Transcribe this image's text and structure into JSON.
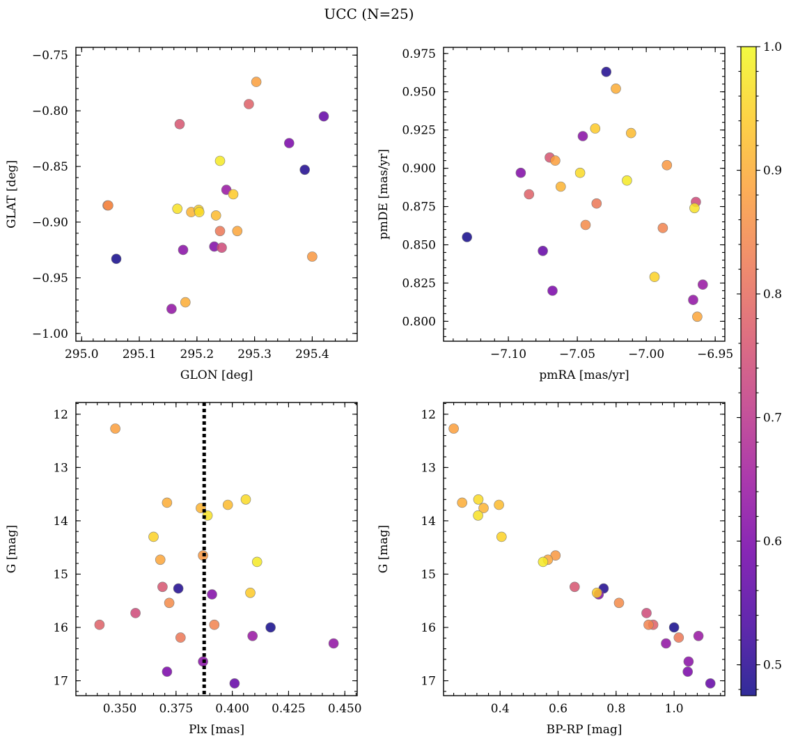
{
  "figure": {
    "title": "UCC (N=25)"
  },
  "colors": {
    "marker_edge": "#7a7a7a",
    "plx_line": "#000000",
    "colormap": [
      "#0d0887",
      "#46039f",
      "#7201a8",
      "#9c179e",
      "#bd3786",
      "#d8576b",
      "#ed7953",
      "#fb9f3a",
      "#fdca26",
      "#f0f921"
    ]
  },
  "colorbar": {
    "min": 0.475,
    "max": 1.0,
    "ticks": [
      "0.5",
      "0.6",
      "0.7",
      "0.8",
      "0.9",
      "1.0"
    ],
    "tick_values": [
      0.5,
      0.6,
      0.7,
      0.8,
      0.9,
      1.0
    ]
  },
  "members": {
    "columns": [
      "glon",
      "glat",
      "pmra",
      "pmde",
      "plx",
      "bp_rp",
      "g",
      "prob"
    ],
    "rows": [
      [
        295.06,
        -0.933,
        -7.13,
        0.855,
        0.417,
        1.0,
        16.0,
        0.48
      ],
      [
        295.387,
        -0.853,
        -7.029,
        0.963,
        0.376,
        0.757,
        15.27,
        0.49
      ],
      [
        295.42,
        -0.805,
        -7.075,
        0.846,
        0.401,
        1.125,
        17.05,
        0.57
      ],
      [
        295.36,
        -0.829,
        -7.068,
        0.82,
        0.371,
        1.047,
        16.83,
        0.6
      ],
      [
        295.23,
        -0.922,
        -7.091,
        0.897,
        0.391,
        0.74,
        15.38,
        0.61
      ],
      [
        295.176,
        -0.925,
        -7.046,
        0.921,
        0.387,
        1.05,
        16.64,
        0.62
      ],
      [
        295.156,
        -0.978,
        -6.966,
        0.814,
        0.445,
        0.972,
        16.3,
        0.63
      ],
      [
        295.251,
        -0.871,
        -6.959,
        0.824,
        0.409,
        1.084,
        16.16,
        0.64
      ],
      [
        295.243,
        -0.923,
        -6.964,
        0.878,
        0.357,
        0.905,
        15.73,
        0.74
      ],
      [
        295.17,
        -0.812,
        -7.07,
        0.907,
        0.369,
        0.657,
        15.24,
        0.76
      ],
      [
        295.29,
        -0.794,
        -7.085,
        0.883,
        0.341,
        0.928,
        15.95,
        0.78
      ],
      [
        295.24,
        -0.908,
        -7.036,
        0.877,
        0.377,
        1.016,
        16.19,
        0.82
      ],
      [
        295.045,
        -0.885,
        -6.988,
        0.861,
        0.392,
        0.912,
        15.95,
        0.84
      ],
      [
        295.046,
        -0.885,
        -7.044,
        0.863,
        0.372,
        0.81,
        15.54,
        0.85
      ],
      [
        295.4,
        -0.931,
        -6.985,
        0.902,
        0.387,
        0.591,
        14.65,
        0.87
      ],
      [
        295.303,
        -0.774,
        -7.066,
        0.905,
        0.348,
        0.24,
        12.27,
        0.88
      ],
      [
        295.27,
        -0.908,
        -6.963,
        0.803,
        0.368,
        0.565,
        14.73,
        0.89
      ],
      [
        295.18,
        -0.972,
        -7.022,
        0.952,
        0.371,
        0.269,
        13.66,
        0.9
      ],
      [
        295.19,
        -0.891,
        -7.062,
        0.888,
        0.386,
        0.343,
        13.76,
        0.91
      ],
      [
        295.233,
        -0.894,
        -7.011,
        0.923,
        0.398,
        0.396,
        13.7,
        0.92
      ],
      [
        295.263,
        -0.875,
        -7.037,
        0.926,
        0.408,
        0.734,
        15.35,
        0.94
      ],
      [
        295.203,
        -0.889,
        -6.994,
        0.829,
        0.365,
        0.405,
        14.3,
        0.95
      ],
      [
        295.204,
        -0.891,
        -7.048,
        0.897,
        0.406,
        0.325,
        13.6,
        0.96
      ],
      [
        295.166,
        -0.888,
        -6.965,
        0.874,
        0.389,
        0.324,
        13.9,
        0.97
      ],
      [
        295.24,
        -0.845,
        -7.014,
        0.892,
        0.411,
        0.548,
        14.77,
        0.98
      ]
    ]
  },
  "chart_data": [
    {
      "type": "scatter",
      "xlabel": "GLON [deg]",
      "ylabel": "GLAT [deg]",
      "xlim": [
        294.99,
        295.478
      ],
      "ylim": [
        -1.007,
        -0.743
      ],
      "xticks": [
        295.0,
        295.1,
        295.2,
        295.3,
        295.4
      ],
      "xtick_labels": [
        "295.0",
        "295.1",
        "295.2",
        "295.3",
        "295.4"
      ],
      "yticks": [
        -1.0,
        -0.95,
        -0.9,
        -0.85,
        -0.8,
        -0.75
      ],
      "ytick_labels": [
        "−1.00",
        "−0.95",
        "−0.90",
        "−0.85",
        "−0.80",
        "−0.75"
      ],
      "x_col": "glon",
      "y_col": "glat",
      "y_inverted": false,
      "color_by": "prob"
    },
    {
      "type": "scatter",
      "xlabel": "pmRA [mas/yr]",
      "ylabel": "pmDE [mas/yr]",
      "xlim": [
        -7.147,
        -6.943
      ],
      "ylim": [
        0.787,
        0.979
      ],
      "xticks": [
        -7.1,
        -7.05,
        -7.0,
        -6.95
      ],
      "xtick_labels": [
        "−7.10",
        "−7.05",
        "−7.00",
        "−6.95"
      ],
      "yticks": [
        0.8,
        0.825,
        0.85,
        0.875,
        0.9,
        0.925,
        0.95,
        0.975
      ],
      "ytick_labels": [
        "0.800",
        "0.825",
        "0.850",
        "0.875",
        "0.900",
        "0.925",
        "0.950",
        "0.975"
      ],
      "x_col": "pmra",
      "y_col": "pmde",
      "y_inverted": false,
      "color_by": "prob"
    },
    {
      "type": "scatter",
      "xlabel": "Plx [mas]",
      "ylabel": "G [mag]",
      "xlim": [
        0.3305,
        0.4555
      ],
      "ylim": [
        11.78,
        17.28
      ],
      "xticks": [
        0.35,
        0.375,
        0.4,
        0.425,
        0.45
      ],
      "xtick_labels": [
        "0.350",
        "0.375",
        "0.400",
        "0.425",
        "0.450"
      ],
      "yticks": [
        12,
        13,
        14,
        15,
        16,
        17
      ],
      "ytick_labels": [
        "12",
        "13",
        "14",
        "15",
        "16",
        "17"
      ],
      "x_col": "plx",
      "y_col": "g",
      "y_inverted": true,
      "color_by": "prob",
      "vline": 0.3875
    },
    {
      "type": "scatter",
      "xlabel": "BP-RP [mag]",
      "ylabel": "G [mag]",
      "xlim": [
        0.205,
        1.175
      ],
      "ylim": [
        11.78,
        17.28
      ],
      "xticks": [
        0.4,
        0.6,
        0.8,
        1.0
      ],
      "xtick_labels": [
        "0.4",
        "0.6",
        "0.8",
        "1.0"
      ],
      "yticks": [
        12,
        13,
        14,
        15,
        16,
        17
      ],
      "ytick_labels": [
        "12",
        "13",
        "14",
        "15",
        "16",
        "17"
      ],
      "x_col": "bp_rp",
      "y_col": "g",
      "y_inverted": true,
      "color_by": "prob"
    }
  ]
}
